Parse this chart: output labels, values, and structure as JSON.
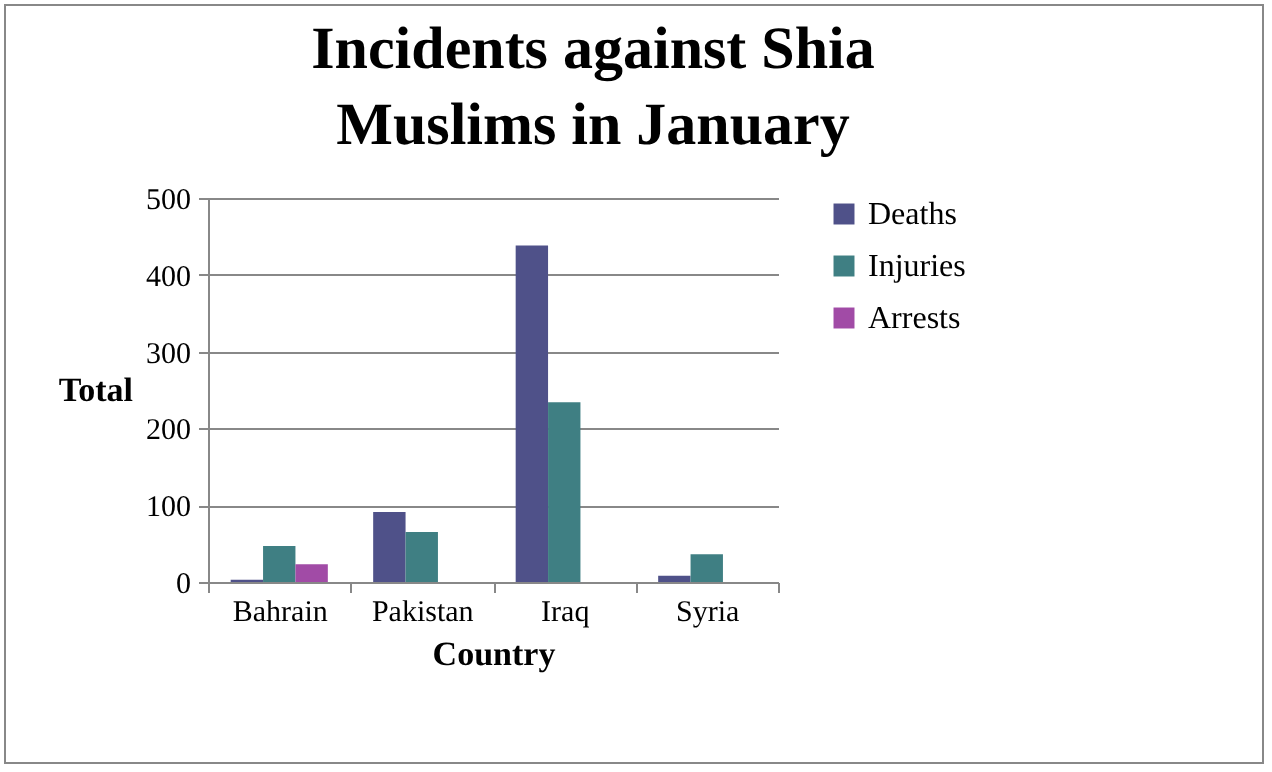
{
  "chart_data": {
    "type": "bar",
    "title": "Incidents against Shia Muslims in January",
    "xlabel": "Country",
    "ylabel": "Total",
    "categories": [
      "Bahrain",
      "Pakistan",
      "Iraq",
      "Syria"
    ],
    "series": [
      {
        "name": "Deaths",
        "color": "#4f5189",
        "values": [
          3,
          91,
          438,
          8
        ]
      },
      {
        "name": "Injuries",
        "color": "#3f7f83",
        "values": [
          47,
          65,
          234,
          36
        ]
      },
      {
        "name": "Arrests",
        "color": "#a14ba6",
        "values": [
          23,
          null,
          null,
          null
        ]
      }
    ],
    "ylim": [
      0,
      500
    ],
    "yticks": [
      0,
      100,
      200,
      300,
      400,
      500
    ],
    "grid": "y",
    "legend": "right"
  }
}
